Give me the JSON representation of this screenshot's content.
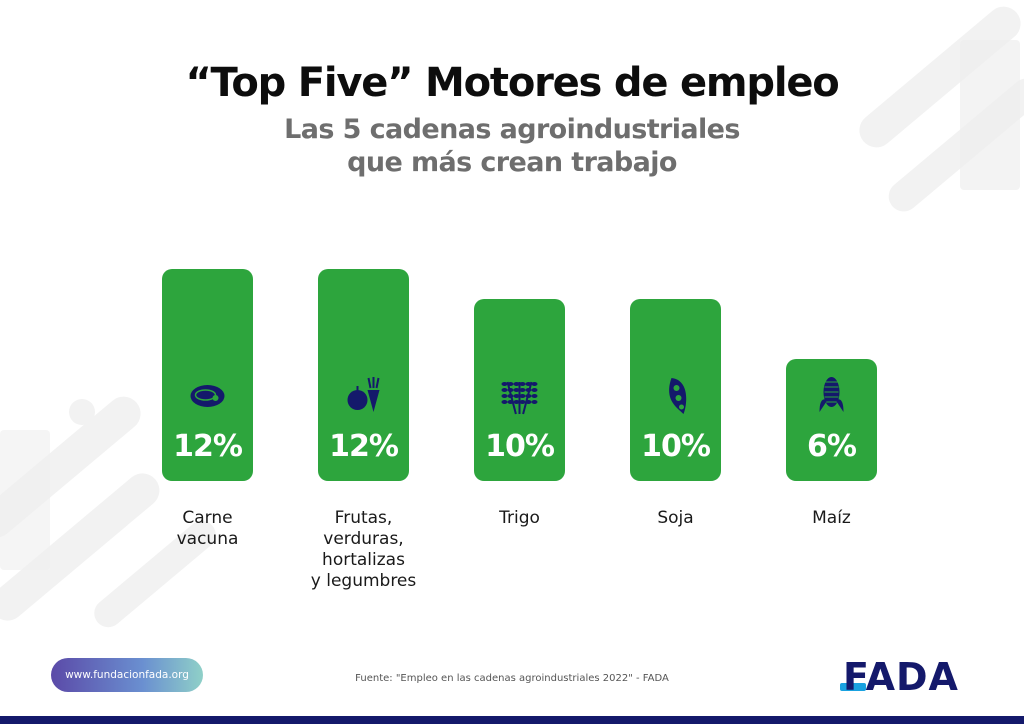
{
  "title": "“Top Five” Motores de empleo",
  "subtitle": "Las 5 cadenas agroindustriales que más crean trabajo",
  "chart_data": {
    "type": "bar",
    "categories": [
      "Carne vacuna",
      "Frutas, verduras, hortalizas y legumbres",
      "Trigo",
      "Soja",
      "Maíz"
    ],
    "category_lines": [
      [
        "Carne",
        "vacuna"
      ],
      [
        "Frutas,",
        "verduras,",
        "hortalizas",
        "y legumbres"
      ],
      [
        "Trigo"
      ],
      [
        "Soja"
      ],
      [
        "Maíz"
      ]
    ],
    "values": [
      12,
      12,
      10,
      10,
      6
    ],
    "value_labels": [
      "12%",
      "12%",
      "10%",
      "10%",
      "6%"
    ],
    "icons": [
      "meat-icon",
      "fruit-vegetable-icon",
      "wheat-icon",
      "soybean-icon",
      "corn-icon"
    ],
    "unit": "%",
    "bar_color": "#2da53d",
    "icon_color": "#14196b",
    "ylim": [
      0,
      12
    ]
  },
  "source": "Fuente: \"Empleo en las cadenas agroindustriales 2022\" - FADA",
  "url": "www.fundacionfada.org",
  "logo": "FADA",
  "colors": {
    "brand_navy": "#14196b",
    "brand_blue": "#1aa2e0",
    "green": "#2da53d"
  }
}
